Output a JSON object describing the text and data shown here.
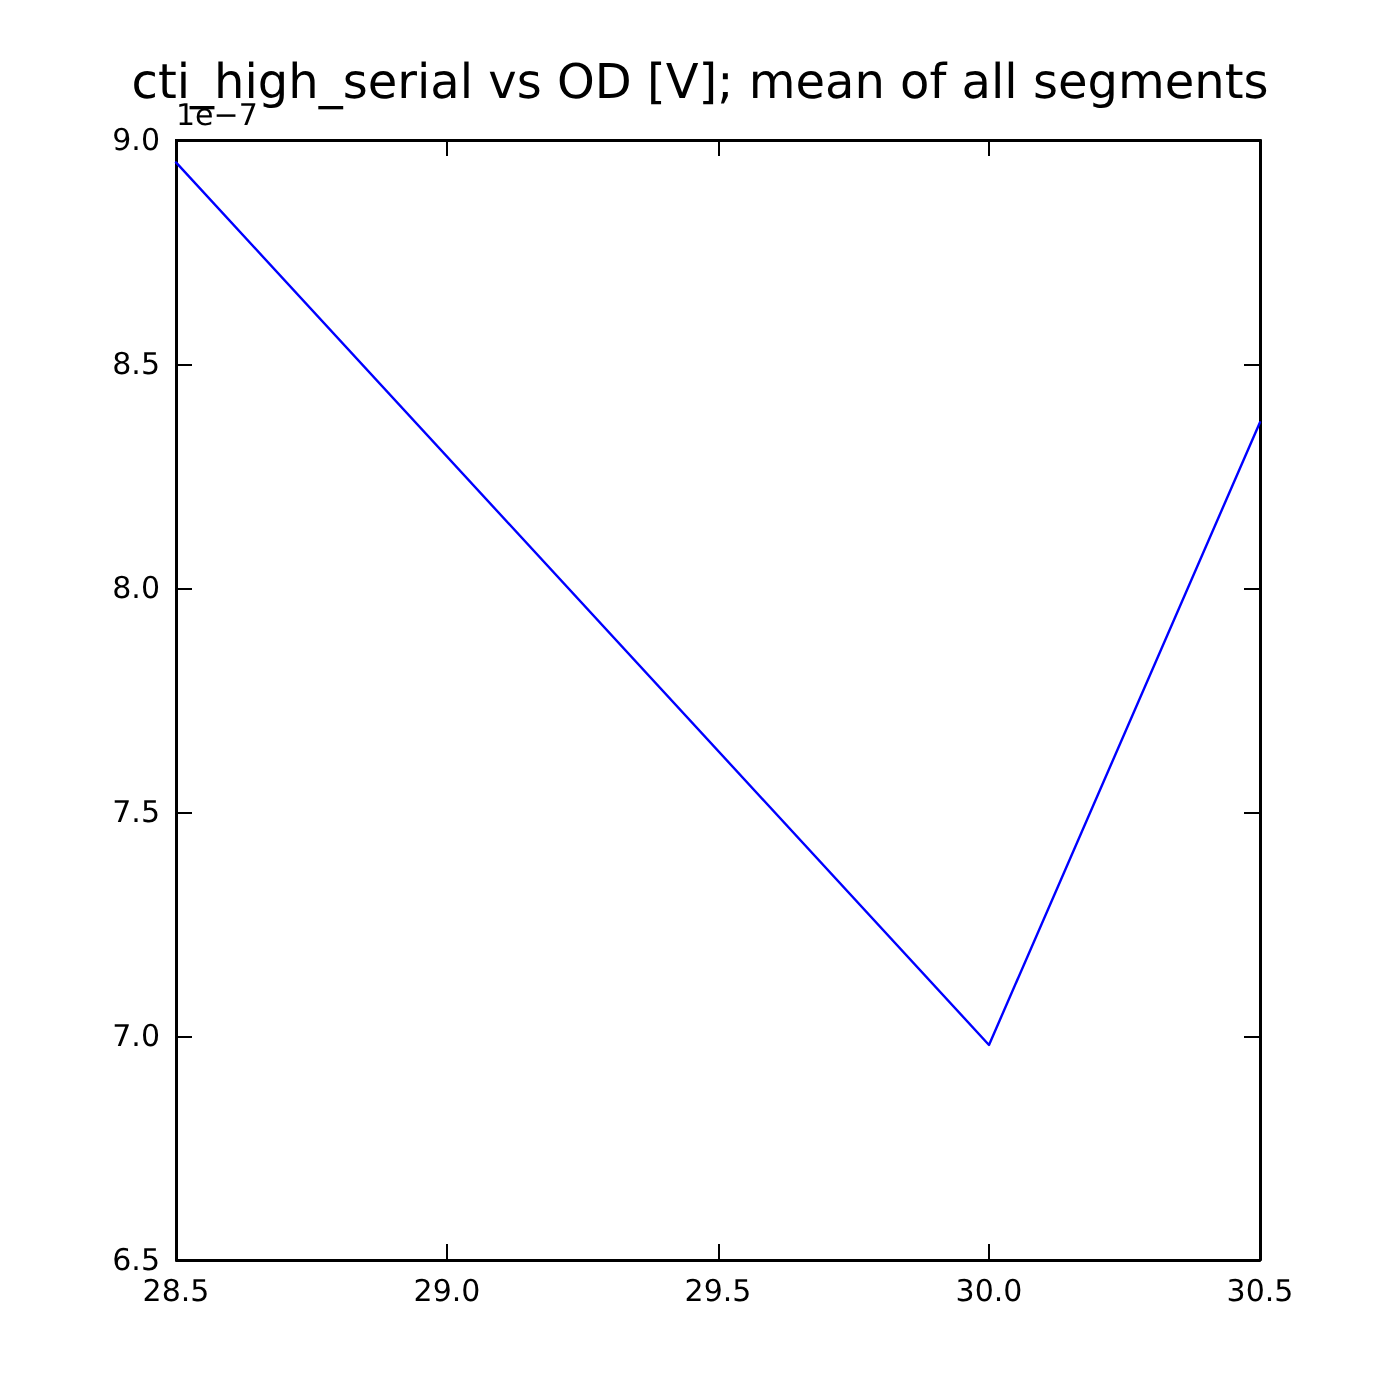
{
  "chart_data": {
    "type": "line",
    "title": "cti_high_serial vs OD [V]; mean of all segments",
    "x": [
      28.5,
      30.0,
      30.5
    ],
    "series": [
      {
        "color": "#0000ff",
        "values": [
          8.95,
          6.98,
          8.37
        ]
      }
    ],
    "xlim": [
      28.5,
      30.5
    ],
    "xticks": [
      28.5,
      {
        "value": 29,
        "label": "29.0"
      },
      29.5,
      {
        "value": 30,
        "label": "30.0"
      },
      30.5
    ],
    "ylim": [
      6.5,
      9
    ],
    "yticks": [
      6.5,
      {
        "value": 7,
        "label": "7.0"
      },
      7.5,
      {
        "value": 8,
        "label": "8.0"
      },
      8.5,
      {
        "value": 9,
        "label": "9.0"
      }
    ],
    "annotations": [
      "1e−7"
    ],
    "grid": false,
    "marker": "none",
    "line_style": "solid"
  }
}
